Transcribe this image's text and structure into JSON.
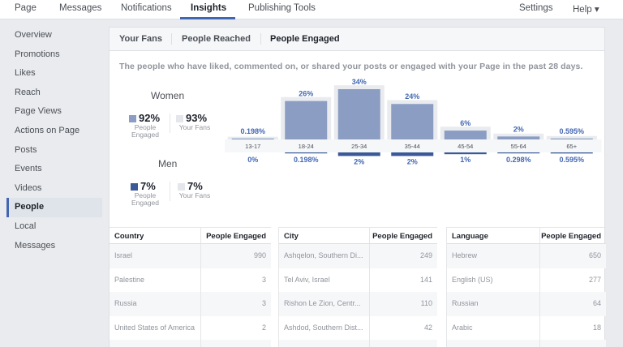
{
  "topnav": {
    "page": "Page",
    "messages": "Messages",
    "notifications": "Notifications",
    "insights": "Insights",
    "publishing_tools": "Publishing Tools",
    "settings": "Settings",
    "help": "Help ▾"
  },
  "sidebar": {
    "items": [
      {
        "label": "Overview"
      },
      {
        "label": "Promotions"
      },
      {
        "label": "Likes"
      },
      {
        "label": "Reach"
      },
      {
        "label": "Page Views"
      },
      {
        "label": "Actions on Page"
      },
      {
        "label": "Posts"
      },
      {
        "label": "Events"
      },
      {
        "label": "Videos"
      },
      {
        "label": "People"
      },
      {
        "label": "Local"
      },
      {
        "label": "Messages"
      }
    ],
    "active": "People"
  },
  "tabs": {
    "your_fans": "Your Fans",
    "people_reached": "People Reached",
    "people_engaged": "People Engaged"
  },
  "description": "The people who have liked, commented on, or shared your posts or engaged with your Page in the past 28 days.",
  "women": {
    "title": "Women",
    "engaged_pct": "92%",
    "engaged_label_1": "People",
    "engaged_label_2": "Engaged",
    "fans_pct": "93%",
    "fans_label": "Your Fans"
  },
  "men": {
    "title": "Men",
    "engaged_pct": "7%",
    "engaged_label_1": "People",
    "engaged_label_2": "Engaged",
    "fans_pct": "7%",
    "fans_label": "Your Fans"
  },
  "colors": {
    "women_engaged": "#8b9dc3",
    "men_engaged": "#3b5998",
    "fans": "#e9ebee",
    "label_blue": "#4267b2"
  },
  "chart_data": {
    "type": "bar",
    "categories": [
      "13-17",
      "18-24",
      "25-34",
      "35-44",
      "45-54",
      "55-64",
      "65+"
    ],
    "series": [
      {
        "name": "Women",
        "values": [
          0.198,
          26,
          34,
          24,
          6,
          2,
          0.595
        ],
        "labels": [
          "0.198%",
          "26%",
          "34%",
          "24%",
          "6%",
          "2%",
          "0.595%"
        ]
      },
      {
        "name": "Men",
        "values": [
          0,
          0.198,
          2,
          2,
          1,
          0.298,
          0.595
        ],
        "labels": [
          "0%",
          "0.198%",
          "2%",
          "2%",
          "1%",
          "0.298%",
          "0.595%"
        ]
      }
    ],
    "fans_women": [
      0.2,
      27,
      35,
      25,
      7,
      2.3,
      0.7
    ],
    "fans_men": [
      0,
      0.3,
      2.2,
      2.2,
      1.1,
      0.3,
      0.6
    ],
    "ylim": [
      0,
      34
    ]
  },
  "tables": {
    "country": {
      "headers": [
        "Country",
        "People Engaged"
      ],
      "rows": [
        [
          "Israel",
          "990"
        ],
        [
          "Palestine",
          "3"
        ],
        [
          "Russia",
          "3"
        ],
        [
          "United States of America",
          "2"
        ]
      ]
    },
    "city": {
      "headers": [
        "City",
        "People Engaged"
      ],
      "rows": [
        [
          "Ashqelon, Southern Di...",
          "249"
        ],
        [
          "Tel Aviv, Israel",
          "141"
        ],
        [
          "Rishon Le Zion, Centr...",
          "110"
        ],
        [
          "Ashdod, Southern Dist...",
          "42"
        ]
      ]
    },
    "language": {
      "headers": [
        "Language",
        "People Engaged"
      ],
      "rows": [
        [
          "Hebrew",
          "650"
        ],
        [
          "English (US)",
          "277"
        ],
        [
          "Russian",
          "64"
        ],
        [
          "Arabic",
          "18"
        ]
      ]
    }
  }
}
